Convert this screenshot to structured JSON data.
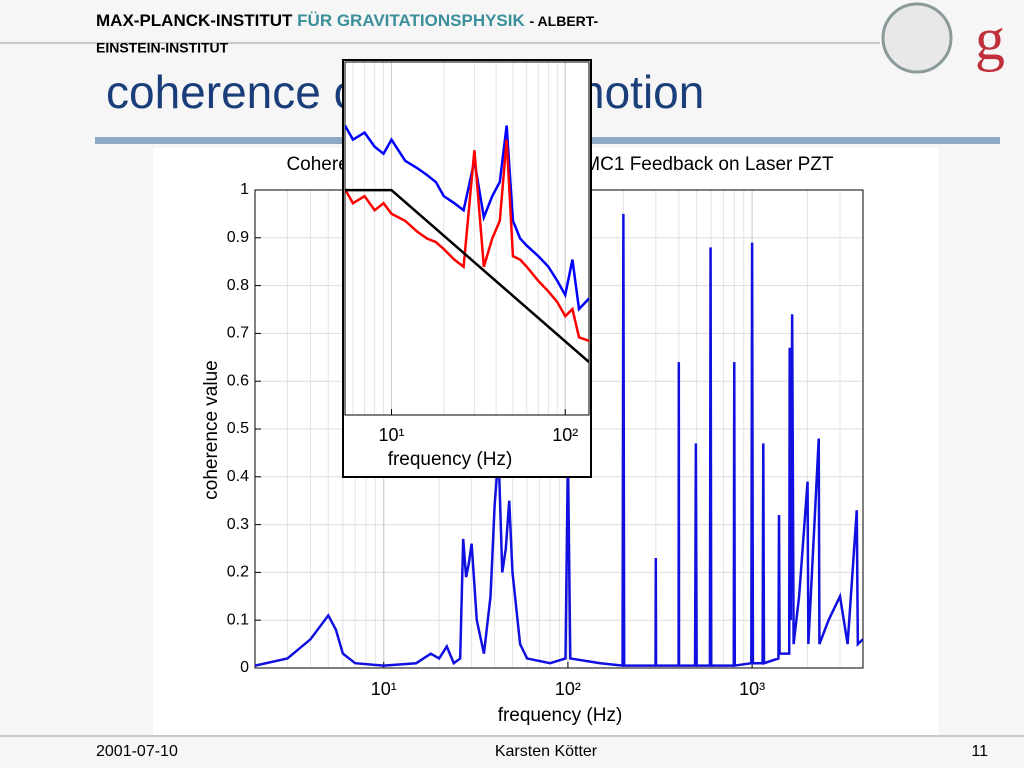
{
  "header": {
    "institute": [
      "MAX-PLANCK-INSTITUT",
      "FÜR GRAVITATIONSPHYSIK",
      "- ALBERT-",
      "EINSTEIN-INSTITUT"
    ]
  },
  "slide_title": "coherence of acoustic motion",
  "footer": {
    "date": "2001-07-10",
    "author": "Karsten Kötter",
    "page": "11"
  },
  "chart_data": [
    {
      "type": "line",
      "title": "Coherence of Acoustic Sensor and MC1 Feedback on Laser PZT",
      "xlabel": "frequency (Hz)",
      "ylabel": "coherence value",
      "xscale": "log",
      "grid": true,
      "xlim": [
        2,
        4000
      ],
      "ylim": [
        0,
        1
      ],
      "xticks": [
        {
          "value": 10,
          "label": "10¹"
        },
        {
          "value": 100,
          "label": "10²"
        },
        {
          "value": 1000,
          "label": "10³"
        }
      ],
      "yticks": [
        0,
        0.1,
        0.2,
        0.3,
        0.4,
        0.5,
        0.6,
        0.7,
        0.8,
        0.9,
        1
      ],
      "series": [
        {
          "color": "#1010e0",
          "x": [
            2,
            3,
            4,
            5,
            5.5,
            6,
            7,
            10,
            15,
            18,
            20,
            22,
            24,
            26,
            27,
            28,
            29,
            30,
            32,
            35,
            38,
            40,
            42,
            44,
            46,
            48,
            50,
            55,
            60,
            80,
            97,
            100,
            103,
            150,
            198,
            200,
            202,
            299,
            300,
            301,
            399,
            400,
            401,
            490,
            495,
            500,
            590,
            595,
            600,
            795,
            800,
            805,
            990,
            1000,
            1010,
            1140,
            1150,
            1160,
            1390,
            1400,
            1410,
            1590,
            1600,
            1620,
            1650,
            1680,
            1800,
            2000,
            2020,
            2300,
            2320,
            2600,
            3000,
            3300,
            3700,
            3750,
            4000
          ],
          "values": [
            0.005,
            0.02,
            0.06,
            0.11,
            0.08,
            0.03,
            0.01,
            0.005,
            0.01,
            0.03,
            0.02,
            0.045,
            0.01,
            0.02,
            0.27,
            0.19,
            0.22,
            0.26,
            0.1,
            0.03,
            0.15,
            0.34,
            0.45,
            0.2,
            0.25,
            0.35,
            0.2,
            0.05,
            0.02,
            0.01,
            0.02,
            0.45,
            0.02,
            0.01,
            0.005,
            0.95,
            0.005,
            0.005,
            0.23,
            0.005,
            0.005,
            0.64,
            0.005,
            0.005,
            0.47,
            0.005,
            0.005,
            0.88,
            0.005,
            0.005,
            0.64,
            0.005,
            0.01,
            0.89,
            0.01,
            0.01,
            0.47,
            0.01,
            0.02,
            0.32,
            0.03,
            0.03,
            0.67,
            0.1,
            0.74,
            0.05,
            0.15,
            0.39,
            0.05,
            0.48,
            0.05,
            0.1,
            0.15,
            0.05,
            0.33,
            0.05,
            0.06
          ]
        }
      ]
    },
    {
      "type": "line",
      "xlabel": "frequency (Hz)",
      "xscale": "log",
      "grid": true,
      "xlim": [
        5.4,
        137
      ],
      "ylim": [
        0,
        1
      ],
      "xticks": [
        {
          "value": 10,
          "label": "10¹"
        },
        {
          "value": 100,
          "label": "10²"
        }
      ],
      "series": [
        {
          "color": "#0000ff",
          "x": [
            5.4,
            6,
            7,
            8,
            9,
            10,
            12,
            14,
            16,
            18,
            20,
            23,
            26,
            30,
            34,
            38,
            42,
            46,
            50,
            55,
            60,
            70,
            80,
            90,
            100,
            110,
            120,
            137
          ],
          "values": [
            0.82,
            0.78,
            0.8,
            0.76,
            0.74,
            0.78,
            0.72,
            0.7,
            0.68,
            0.66,
            0.62,
            0.6,
            0.58,
            0.72,
            0.56,
            0.62,
            0.66,
            0.82,
            0.55,
            0.5,
            0.48,
            0.45,
            0.42,
            0.38,
            0.34,
            0.44,
            0.3,
            0.33
          ]
        },
        {
          "color": "#ff0000",
          "x": [
            5.4,
            6,
            7,
            8,
            9,
            10,
            12,
            14,
            16,
            18,
            20,
            23,
            26,
            30,
            34,
            38,
            42,
            46,
            50,
            55,
            60,
            70,
            80,
            90,
            100,
            110,
            120,
            137
          ],
          "values": [
            0.64,
            0.6,
            0.62,
            0.58,
            0.6,
            0.57,
            0.55,
            0.52,
            0.5,
            0.49,
            0.47,
            0.44,
            0.42,
            0.75,
            0.42,
            0.5,
            0.55,
            0.78,
            0.45,
            0.44,
            0.42,
            0.38,
            0.35,
            0.32,
            0.28,
            0.3,
            0.22,
            0.21
          ]
        },
        {
          "color": "#000000",
          "x": [
            5.4,
            10,
            137
          ],
          "values": [
            0.637,
            0.637,
            0.15
          ]
        }
      ]
    }
  ]
}
